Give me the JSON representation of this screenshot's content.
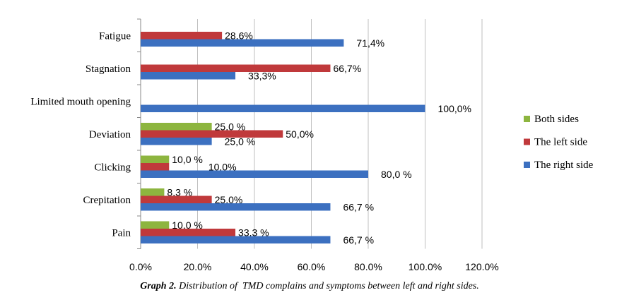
{
  "chart_data": {
    "type": "bar",
    "orientation": "horizontal",
    "categories": [
      "Fatigue",
      "Stagnation",
      "Limited mouth opening",
      "Deviation",
      "Clicking",
      "Crepitation",
      "Pain"
    ],
    "series": [
      {
        "name": "Both sides",
        "color": "#8db53f",
        "values": [
          null,
          null,
          null,
          25.0,
          10.0,
          8.3,
          10.0
        ],
        "labels": [
          "",
          "",
          "",
          "25,0 %",
          "10,0 %",
          "8,3 %",
          "10,0 %"
        ]
      },
      {
        "name": "The left side",
        "color": "#c0393b",
        "values": [
          28.6,
          66.7,
          null,
          50.0,
          10.0,
          25.0,
          33.3
        ],
        "labels": [
          "28,6%",
          "66,7%",
          "",
          "50,0%",
          "10,0%",
          "25,0%",
          "33,3 %"
        ]
      },
      {
        "name": "The right side",
        "color": "#3c70c0",
        "values": [
          71.4,
          33.3,
          100.0,
          25.0,
          80.0,
          66.7,
          66.7
        ],
        "labels": [
          "71,4%",
          "33,3%",
          "100,0%",
          "25,0 %",
          "80,0 %",
          "66,7 %",
          "66,7 %"
        ]
      }
    ],
    "xticks": [
      "0.0%",
      "20.0%",
      "40.0%",
      "60.0%",
      "80.0%",
      "100.0%",
      "120.0%"
    ],
    "xlim": [
      0,
      120
    ],
    "grid": true,
    "legend": "right",
    "caption_bold": "Graph 2.",
    "caption": " Distribution of  TMD complains and symptoms between left and right sides."
  }
}
